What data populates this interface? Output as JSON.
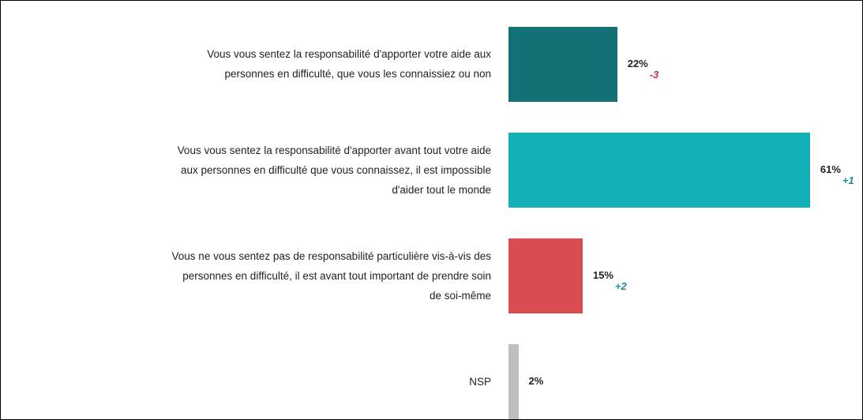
{
  "chart_data": {
    "type": "bar",
    "orientation": "horizontal",
    "categories": [
      [
        "Vous vous sentez la responsabilité d'apporter votre aide aux",
        "personnes en difficulté, que vous les connaissiez ou non"
      ],
      [
        "Vous vous sentez la responsabilité d'apporter avant tout votre aide",
        "aux personnes en difficulté que vous connaissez, il est impossible",
        "d'aider tout le monde"
      ],
      [
        "Vous ne vous sentez pas de responsabilité particulière vis-à-vis des",
        "personnes en difficulté, il est avant tout important de prendre soin",
        "de soi-même"
      ],
      [
        "NSP"
      ]
    ],
    "values": [
      22,
      61,
      15,
      2
    ],
    "value_labels": [
      "22%",
      "61%",
      "15%",
      "2%"
    ],
    "colors": [
      "#137176",
      "#14b0b7",
      "#d94c4f",
      "#bfbfbf"
    ],
    "changes": [
      -3,
      1,
      2,
      null
    ],
    "change_labels": [
      "-3",
      "+1",
      "+2",
      null
    ],
    "change_colors": {
      "negative": "#c0304d",
      "positive": "#1a8e9a"
    }
  }
}
